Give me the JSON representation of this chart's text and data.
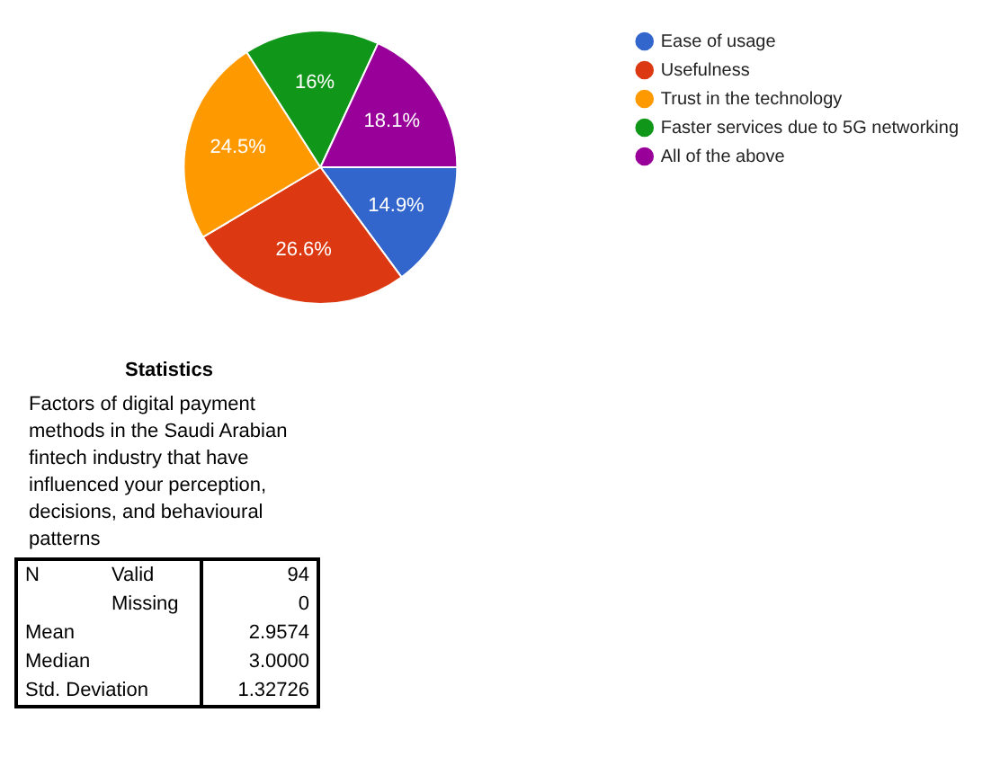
{
  "chart_data": {
    "type": "pie",
    "categories": [
      "Ease of usage",
      "Usefulness",
      "Trust in the technology",
      "Faster services due to 5G networking",
      "All of the above"
    ],
    "values": [
      14.9,
      26.6,
      24.5,
      16,
      18.1
    ],
    "value_labels": [
      "14.9%",
      "26.6%",
      "24.5%",
      "16%",
      "18.1%"
    ],
    "colors": [
      "#3366cc",
      "#dc3912",
      "#ff9900",
      "#109618",
      "#990099"
    ],
    "legend": "top right",
    "annotations": [
      "Statistics",
      "Factors of digital payment methods in the Saudi Arabian fintech industry that have influenced your perception, decisions, and behavioural patterns",
      "N\tValid\t94",
      "\tMissing\t0",
      "Mean\t\t2.9574",
      "Median\t\t3.0000",
      "Std. Deviation\t\t1.32726"
    ]
  }
}
